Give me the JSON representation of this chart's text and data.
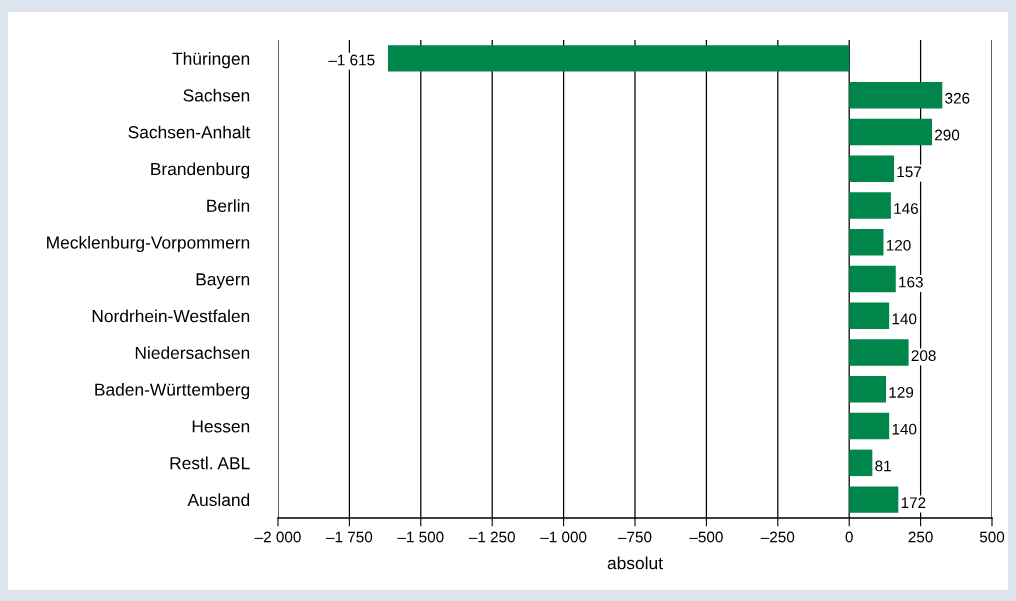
{
  "chart_data": {
    "type": "bar",
    "orientation": "horizontal",
    "xlabel": "absolut",
    "categories": [
      "Thüringen",
      "Sachsen",
      "Sachsen-Anhalt",
      "Brandenburg",
      "Berlin",
      "Mecklenburg-Vorpommern",
      "Bayern",
      "Nordrhein-Westfalen",
      "Niedersachsen",
      "Baden-Württemberg",
      "Hessen",
      "Restl. ABL",
      "Ausland"
    ],
    "values": [
      -1615,
      326,
      290,
      157,
      146,
      120,
      163,
      140,
      208,
      129,
      140,
      81,
      172
    ],
    "value_labels": [
      "–1 615",
      "326",
      "290",
      "157",
      "146",
      "120",
      "163",
      "140",
      "208",
      "129",
      "140",
      "81",
      "172"
    ],
    "color": "#00854a",
    "xlim": [
      -2000,
      500
    ],
    "xticks": [
      {
        "value": -2000,
        "label": "–2 000"
      },
      {
        "value": -1750,
        "label": "–1 750"
      },
      {
        "value": -1500,
        "label": "–1 500"
      },
      {
        "value": -1250,
        "label": "–1 250"
      },
      {
        "value": -1000,
        "label": "–1 000"
      },
      {
        "value": -750,
        "label": "–750"
      },
      {
        "value": -500,
        "label": "–500"
      },
      {
        "value": -250,
        "label": "–250"
      },
      0,
      250,
      500
    ],
    "grid": "x"
  }
}
